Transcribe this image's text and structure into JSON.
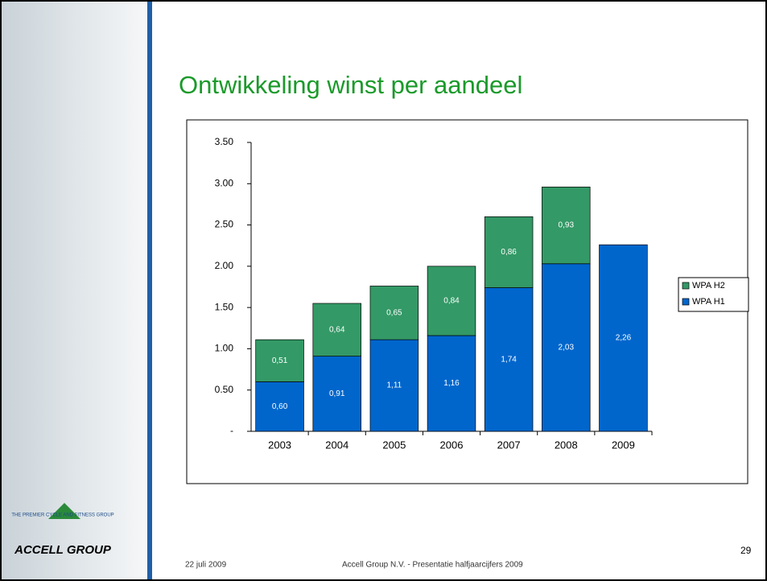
{
  "slide": {
    "title": "Ontwikkeling winst per aandeel",
    "date": "22 juli 2009",
    "footer": "Accell Group N.V.  - Presentatie halfjaarcijfers 2009",
    "page": "29",
    "logo": "ACCELL GROUP",
    "logo_ring": "THE PREMIER CYCLE AND FITNESS GROUP"
  },
  "chart_data": {
    "type": "stacked-bar",
    "categories": [
      "2003",
      "2004",
      "2005",
      "2006",
      "2007",
      "2008",
      "2009"
    ],
    "series": [
      {
        "name": "WPA H1",
        "color": "#0066cc",
        "values": [
          0.6,
          0.91,
          1.11,
          1.16,
          1.74,
          2.03,
          2.26
        ],
        "value_labels": [
          "0,60",
          "0,91",
          "1,11",
          "1,16",
          "1,74",
          "2,03",
          "2,26"
        ]
      },
      {
        "name": "WPA H2",
        "color": "#339966",
        "values": [
          0.51,
          0.64,
          0.65,
          0.84,
          0.86,
          0.93,
          null
        ],
        "value_labels": [
          "0,51",
          "0,64",
          "0,65",
          "0,84",
          "0,86",
          "0,93",
          null
        ]
      }
    ],
    "ylim": [
      0,
      3.5
    ],
    "yticks": [
      {
        "value": 0,
        "label": "-"
      },
      {
        "value": 0.5,
        "label": "0.50"
      },
      {
        "value": 1,
        "label": "1.00"
      },
      {
        "value": 1.5,
        "label": "1.50"
      },
      {
        "value": 2,
        "label": "2.00"
      },
      {
        "value": 2.5,
        "label": "2.50"
      },
      {
        "value": 3,
        "label": "3.00"
      },
      {
        "value": 3.5,
        "label": "3.50"
      }
    ],
    "grid": false,
    "legend": "right"
  }
}
